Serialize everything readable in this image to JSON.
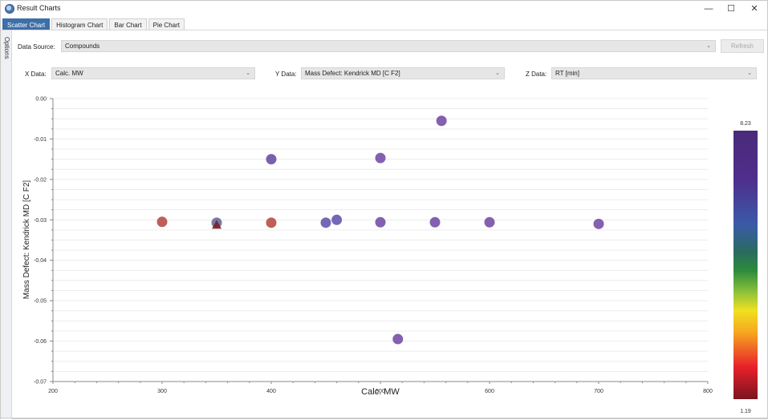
{
  "window": {
    "title": "Result Charts",
    "controls": {
      "minimize": "—",
      "maximize": "☐",
      "close": "✕"
    }
  },
  "tabs": [
    {
      "label": "Scatter Chart",
      "active": true
    },
    {
      "label": "Histogram Chart",
      "active": false
    },
    {
      "label": "Bar Chart",
      "active": false
    },
    {
      "label": "Pie Chart",
      "active": false
    }
  ],
  "side_panel": {
    "label": "Options"
  },
  "controls": {
    "data_source_label": "Data Source:",
    "data_source_value": "Compounds",
    "refresh_label": "Refresh",
    "x_data_label": "X Data:",
    "x_data_value": "Calc. MW",
    "y_data_label": "Y Data:",
    "y_data_value": "Mass Defect: Kendrick MD [C F2]",
    "z_data_label": "Z Data:",
    "z_data_value": "RT [min]"
  },
  "colors": {
    "accent_tab": "#3d6fa8",
    "point_purple": "#7a52a8",
    "point_red": "#b9514a",
    "triangle_dark_red": "#7a1f28",
    "grid": "#ececec",
    "axis": "#8a8a8a"
  },
  "chart_data": {
    "type": "scatter",
    "title": "",
    "xlabel": "Calc. MW",
    "ylabel": "Mass Defect: Kendrick MD [C F2]",
    "xlim": [
      200,
      800
    ],
    "ylim": [
      -0.07,
      0.0
    ],
    "x_ticks": [
      "200",
      "300",
      "400",
      "500",
      "600",
      "700",
      "800"
    ],
    "y_ticks": [
      "0.00",
      "-0.01",
      "-0.02",
      "-0.03",
      "-0.04",
      "-0.05",
      "-0.06",
      "-0.07"
    ],
    "grid": true,
    "colorbar": {
      "label": "RT [min]",
      "max_label": "8.23",
      "min_label": "1.19",
      "max": 8.23,
      "min": 1.19,
      "position": "right"
    },
    "points": [
      {
        "x": 300,
        "y": -0.0305,
        "z": 2.0,
        "color": "#b9514a",
        "shape": "circle"
      },
      {
        "x": 350,
        "y": -0.0307,
        "z": 7.0,
        "color": "#6b6f9a",
        "shape": "circle"
      },
      {
        "x": 350,
        "y": -0.0312,
        "z": 1.19,
        "color": "#7a1f28",
        "shape": "triangle"
      },
      {
        "x": 400,
        "y": -0.0307,
        "z": 2.0,
        "color": "#b9514a",
        "shape": "circle"
      },
      {
        "x": 400,
        "y": -0.015,
        "z": 7.8,
        "color": "#6d54a6",
        "shape": "circle"
      },
      {
        "x": 450,
        "y": -0.0307,
        "z": 7.9,
        "color": "#6a5ab0",
        "shape": "circle"
      },
      {
        "x": 460,
        "y": -0.03,
        "z": 7.9,
        "color": "#6a5ab0",
        "shape": "circle"
      },
      {
        "x": 500,
        "y": -0.0147,
        "z": 8.0,
        "color": "#7a52a8",
        "shape": "circle"
      },
      {
        "x": 500,
        "y": -0.0306,
        "z": 8.0,
        "color": "#7a52a8",
        "shape": "circle"
      },
      {
        "x": 516,
        "y": -0.0595,
        "z": 8.0,
        "color": "#7a52a8",
        "shape": "circle"
      },
      {
        "x": 550,
        "y": -0.0306,
        "z": 8.0,
        "color": "#7a52a8",
        "shape": "circle"
      },
      {
        "x": 556,
        "y": -0.0055,
        "z": 8.0,
        "color": "#7a52a8",
        "shape": "circle"
      },
      {
        "x": 600,
        "y": -0.0306,
        "z": 8.0,
        "color": "#7a52a8",
        "shape": "circle"
      },
      {
        "x": 700,
        "y": -0.031,
        "z": 8.0,
        "color": "#7a52a8",
        "shape": "circle"
      }
    ]
  }
}
